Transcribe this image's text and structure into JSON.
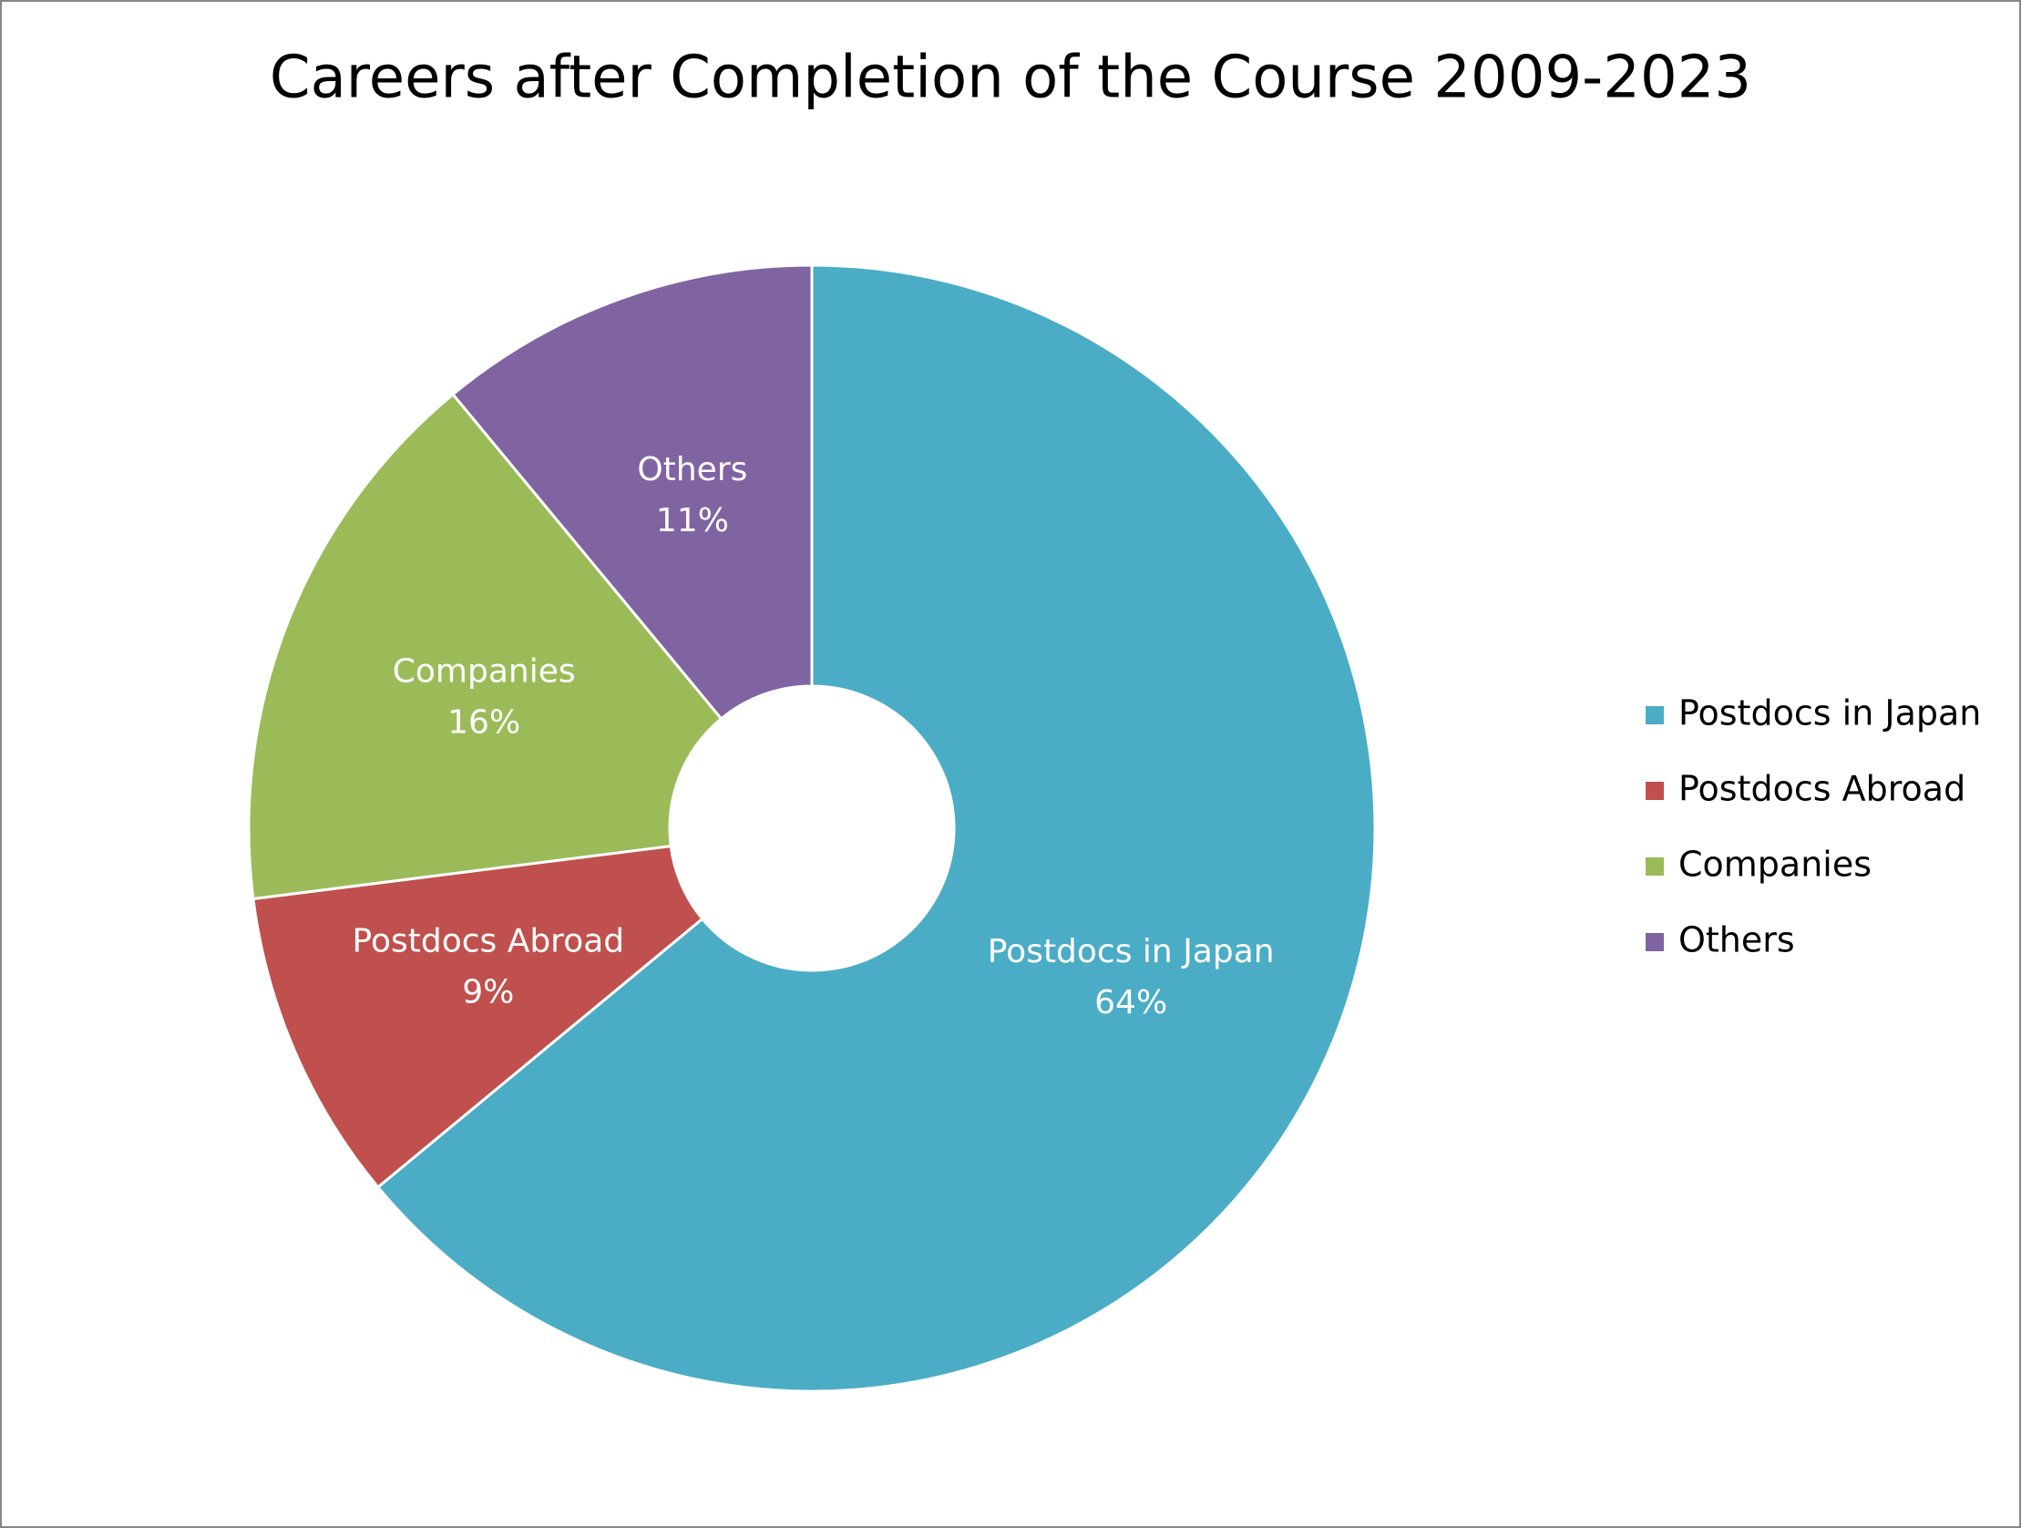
{
  "chart_data": {
    "type": "donut",
    "title": "Careers after Completion of the Course  2009-2023",
    "categories": [
      "Postdocs in Japan",
      "Postdocs Abroad",
      "Companies",
      "Others"
    ],
    "values": [
      64,
      9,
      16,
      11
    ],
    "value_labels": [
      "64%",
      "9%",
      "16%",
      "11%"
    ],
    "colors": [
      "#4bacc6",
      "#c0504d",
      "#9bbb59",
      "#8064a2"
    ],
    "legend": "right"
  }
}
